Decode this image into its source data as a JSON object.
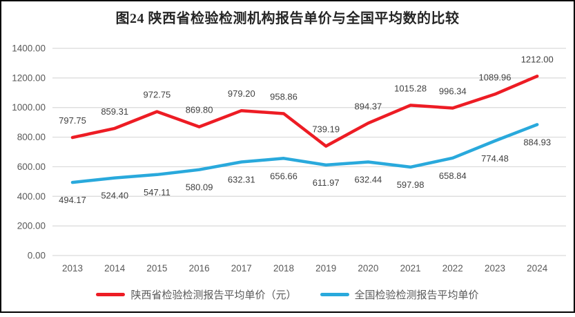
{
  "title": "图24 陕西省检验检测机构报告单价与全国平均数的比较",
  "chart_data": {
    "type": "line",
    "title": "图24 陕西省检验检测机构报告单价与全国平均数的比较",
    "categories": [
      "2013",
      "2014",
      "2015",
      "2016",
      "2017",
      "2018",
      "2019",
      "2020",
      "2021",
      "2022",
      "2023",
      "2024"
    ],
    "series": [
      {
        "name": "陕西省检验检测报告平均单价（元）",
        "color": "#ED1C24",
        "label_position": "above",
        "values": [
          797.75,
          859.31,
          972.75,
          869.8,
          979.2,
          958.86,
          739.19,
          894.37,
          1015.28,
          996.34,
          1089.96,
          1212.0
        ]
      },
      {
        "name": "全国检验检测报告平均单价",
        "color": "#29A9DC",
        "label_position": "below",
        "values": [
          494.17,
          524.4,
          547.11,
          580.09,
          632.31,
          656.66,
          611.97,
          632.44,
          597.98,
          658.84,
          774.48,
          884.93
        ]
      }
    ],
    "ylim": [
      0,
      1400
    ],
    "yticks": [
      "0.00",
      "200.00",
      "400.00",
      "600.00",
      "800.00",
      "1000.00",
      "1200.00",
      "1400.00"
    ],
    "xlabel": "",
    "ylabel": "",
    "grid": true,
    "value_labels": true,
    "legend_position": "bottom"
  },
  "colors": {
    "background": "#FFFFFF",
    "frame_border": "#000000",
    "gridline": "#D9D9D9",
    "axis_text": "#595959",
    "data_label_text": "#404040",
    "title_text": "#262626",
    "series_shaanxi": "#ED1C24",
    "series_national": "#29A9DC"
  }
}
